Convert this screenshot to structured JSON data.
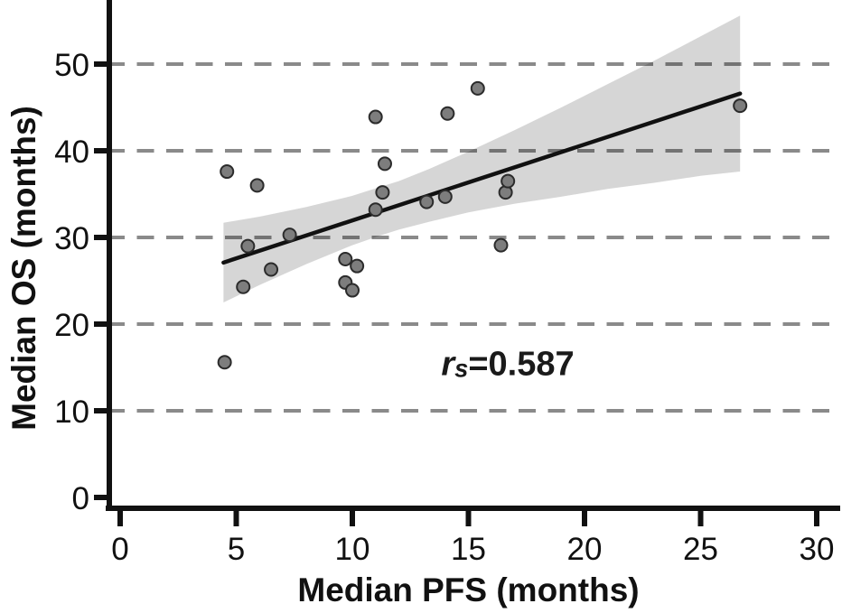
{
  "chart_data": {
    "type": "scatter",
    "title": "",
    "xlabel": "Median PFS (months)",
    "ylabel": "Median OS (months)",
    "annotation": {
      "symbol": "r",
      "subscript": "s",
      "rest": "=0.587"
    },
    "x_ticks": [
      0,
      5,
      10,
      15,
      20,
      25,
      30
    ],
    "y_ticks": [
      0,
      10,
      20,
      30,
      40,
      50
    ],
    "xlim": [
      0,
      31.1
    ],
    "ylim": [
      -1.6,
      57.4
    ],
    "grid": {
      "axis": "y",
      "style": "dashed",
      "values": [
        10,
        20,
        30,
        40,
        50
      ]
    },
    "legend": "none",
    "points": [
      [
        4.5,
        15.6
      ],
      [
        4.6,
        37.6
      ],
      [
        5.3,
        24.3
      ],
      [
        5.5,
        29.0
      ],
      [
        5.9,
        36.0
      ],
      [
        6.5,
        26.3
      ],
      [
        7.3,
        30.3
      ],
      [
        9.7,
        27.5
      ],
      [
        9.7,
        24.8
      ],
      [
        10.0,
        23.9
      ],
      [
        10.2,
        26.7
      ],
      [
        11.0,
        33.2
      ],
      [
        11.0,
        43.9
      ],
      [
        11.3,
        35.2
      ],
      [
        11.4,
        38.5
      ],
      [
        13.2,
        34.1
      ],
      [
        14.0,
        34.7
      ],
      [
        14.1,
        44.3
      ],
      [
        15.4,
        47.2
      ],
      [
        16.4,
        29.1
      ],
      [
        16.6,
        35.2
      ],
      [
        16.7,
        36.5
      ],
      [
        26.7,
        45.2
      ]
    ],
    "regression_line": {
      "x1": 4.45,
      "y1": 27.1,
      "x2": 26.7,
      "y2": 46.6
    },
    "confidence_band": {
      "top": [
        [
          4.45,
          31.7
        ],
        [
          6,
          32.4
        ],
        [
          8,
          33.5
        ],
        [
          10,
          34.8
        ],
        [
          11.17,
          35.8
        ],
        [
          12,
          36.5
        ],
        [
          13.3,
          37.9
        ],
        [
          15,
          39.9
        ],
        [
          17,
          42.4
        ],
        [
          19,
          45.0
        ],
        [
          21,
          47.7
        ],
        [
          23,
          50.4
        ],
        [
          25,
          53.2
        ],
        [
          26.7,
          55.6
        ]
      ],
      "bottom": [
        [
          4.45,
          22.5
        ],
        [
          6,
          24.5
        ],
        [
          8,
          26.9
        ],
        [
          10,
          29.1
        ],
        [
          11.17,
          30.2
        ],
        [
          12,
          30.9
        ],
        [
          13.3,
          31.8
        ],
        [
          15,
          32.9
        ],
        [
          17,
          33.9
        ],
        [
          19,
          34.7
        ],
        [
          21,
          35.6
        ],
        [
          23,
          36.3
        ],
        [
          25,
          37.1
        ],
        [
          26.7,
          37.6
        ]
      ]
    },
    "colors": {
      "point_fill": "#7d7d7d",
      "point_stroke": "#2b2b2b",
      "line": "#111111",
      "band": "rgba(0,0,0,0.16)",
      "grid": "#8a8a8a",
      "axis": "#111111",
      "background": "#ffffff"
    }
  }
}
